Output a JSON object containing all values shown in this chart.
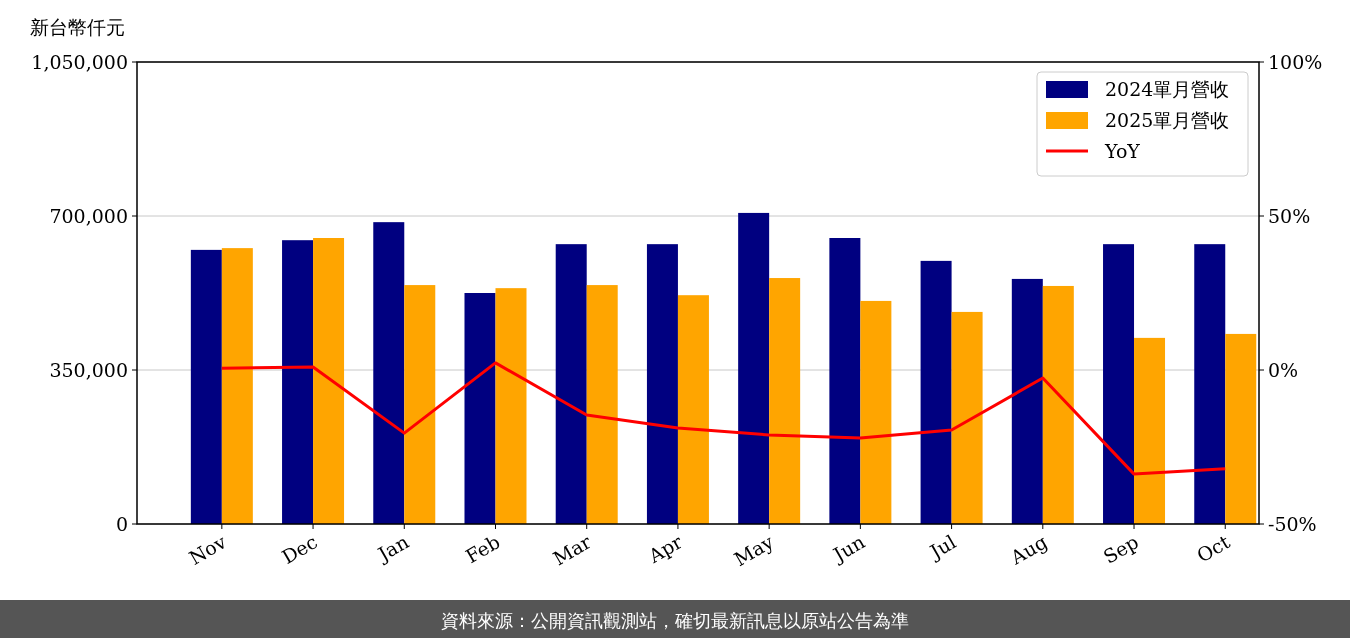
{
  "chart_data": {
    "type": "bar",
    "ylabel": "新台幣仟元",
    "categories": [
      "Nov",
      "Dec",
      "Jan",
      "Feb",
      "Mar",
      "Apr",
      "May",
      "Jun",
      "Jul",
      "Aug",
      "Sep",
      "Oct"
    ],
    "series": [
      {
        "name": "2024單月營收",
        "color": "#000080",
        "values": [
          623000,
          645000,
          686000,
          525000,
          636000,
          636000,
          707000,
          650000,
          598000,
          557000,
          636000,
          636000
        ]
      },
      {
        "name": "2025單月營收",
        "color": "#ffa500",
        "values": [
          627000,
          650000,
          543000,
          536000,
          543000,
          520000,
          559000,
          507000,
          482000,
          541000,
          423000,
          432000
        ]
      },
      {
        "name": "YoY",
        "type": "line",
        "axis": "y2",
        "color": "#ff0000",
        "values": [
          0.6,
          1.0,
          -20.5,
          2.3,
          -14.6,
          -18.8,
          -21.1,
          -22.1,
          -19.5,
          -2.6,
          -33.8,
          -32.1
        ]
      }
    ],
    "ylim": [
      0,
      1050000
    ],
    "yticks": [
      {
        "value": 0,
        "label": "0"
      },
      {
        "value": 350000,
        "label": "350,000"
      },
      {
        "value": 700000,
        "label": "700,000"
      },
      {
        "value": 1050000,
        "label": "1,050,000"
      }
    ],
    "y2lim": [
      -50,
      100
    ],
    "y2ticks": [
      {
        "value": -50,
        "label": "-50%"
      },
      {
        "value": 0,
        "label": "0%"
      },
      {
        "value": 50,
        "label": "50%"
      },
      {
        "value": 100,
        "label": "100%"
      }
    ],
    "grid": "y",
    "legend": "top right",
    "annotations": [
      "資料來源：公開資訊觀測站，確切最新訊息以原站公告為準"
    ]
  }
}
